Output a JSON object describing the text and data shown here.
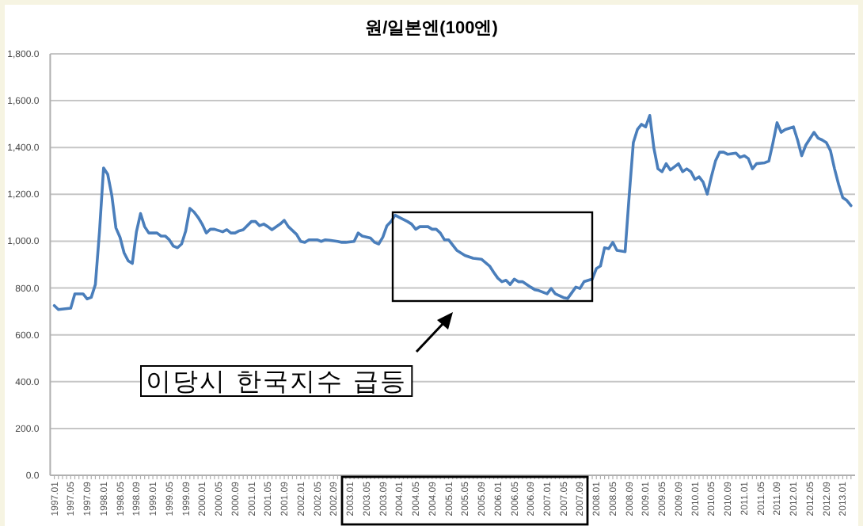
{
  "chart_data": {
    "type": "line",
    "title": "원/일본엔(100엔)",
    "annotations": [
      "이당시 한국지수 급등"
    ],
    "x": [
      "1997-01",
      "1997-02",
      "1997-05",
      "1997-06",
      "1997-08",
      "1997-09",
      "1997-10",
      "1997-11",
      "1997-12",
      "1998-01",
      "1998-02",
      "1998-03",
      "1998-04",
      "1998-05",
      "1998-06",
      "1998-07",
      "1998-08",
      "1998-09",
      "1998-10",
      "1998-11",
      "1998-12",
      "1999-02",
      "1999-03",
      "1999-04",
      "1999-05",
      "1999-06",
      "1999-07",
      "1999-08",
      "1999-09",
      "1999-10",
      "1999-11",
      "1999-12",
      "2000-01",
      "2000-02",
      "2000-03",
      "2000-04",
      "2000-06",
      "2000-07",
      "2000-08",
      "2000-09",
      "2000-10",
      "2000-11",
      "2001-01",
      "2001-02",
      "2001-03",
      "2001-04",
      "2001-05",
      "2001-06",
      "2001-08",
      "2001-09",
      "2001-10",
      "2001-12",
      "2002-01",
      "2002-02",
      "2002-03",
      "2002-05",
      "2002-06",
      "2002-07",
      "2002-08",
      "2002-10",
      "2002-11",
      "2002-12",
      "2003-02",
      "2003-03",
      "2003-04",
      "2003-06",
      "2003-07",
      "2003-08",
      "2003-09",
      "2003-10",
      "2003-11",
      "2003-12",
      "2004-01",
      "2004-03",
      "2004-04",
      "2004-05",
      "2004-06",
      "2004-08",
      "2004-09",
      "2004-10",
      "2004-11",
      "2004-12",
      "2005-01",
      "2005-03",
      "2005-05",
      "2005-07",
      "2005-09",
      "2005-11",
      "2005-12",
      "2006-01",
      "2006-02",
      "2006-03",
      "2006-04",
      "2006-05",
      "2006-06",
      "2006-07",
      "2006-09",
      "2006-10",
      "2006-11",
      "2007-01",
      "2007-02",
      "2007-03",
      "2007-05",
      "2007-06",
      "2007-08",
      "2007-09",
      "2007-10",
      "2007-12",
      "2008-01",
      "2008-02",
      "2008-03",
      "2008-04",
      "2008-05",
      "2008-06",
      "2008-08",
      "2008-09",
      "2008-10",
      "2008-11",
      "2008-12",
      "2009-01",
      "2009-02",
      "2009-03",
      "2009-04",
      "2009-05",
      "2009-06",
      "2009-07",
      "2009-09",
      "2009-10",
      "2009-11",
      "2009-12",
      "2010-01",
      "2010-02",
      "2010-03",
      "2010-04",
      "2010-05",
      "2010-06",
      "2010-07",
      "2010-08",
      "2010-09",
      "2010-11",
      "2010-12",
      "2011-01",
      "2011-02",
      "2011-03",
      "2011-04",
      "2011-06",
      "2011-07",
      "2011-08",
      "2011-09",
      "2011-10",
      "2011-11",
      "2012-01",
      "2012-02",
      "2012-03",
      "2012-04",
      "2012-06",
      "2012-07",
      "2012-08",
      "2012-09",
      "2012-10",
      "2012-11",
      "2012-12",
      "2013-01",
      "2013-02",
      "2013-03"
    ],
    "series": [
      {
        "color": "#4a7ebb",
        "values": [
          725,
          708,
          714,
          775,
          775,
          753,
          760,
          815,
          1040,
          1313,
          1286,
          1196,
          1057,
          1017,
          950,
          916,
          905,
          1040,
          1118,
          1062,
          1035,
          1035,
          1022,
          1022,
          1006,
          979,
          972,
          988,
          1044,
          1140,
          1125,
          1102,
          1073,
          1035,
          1051,
          1051,
          1040,
          1049,
          1035,
          1035,
          1044,
          1049,
          1084,
          1084,
          1066,
          1073,
          1062,
          1049,
          1073,
          1089,
          1062,
          1029,
          999,
          995,
          1006,
          1006,
          999,
          1006,
          1004,
          999,
          995,
          995,
          999,
          1035,
          1022,
          1013,
          995,
          988,
          1017,
          1066,
          1084,
          1111,
          1102,
          1084,
          1073,
          1051,
          1062,
          1062,
          1051,
          1051,
          1035,
          1006,
          1006,
          961,
          939,
          927,
          923,
          894,
          867,
          842,
          827,
          833,
          815,
          838,
          827,
          827,
          804,
          793,
          789,
          775,
          798,
          775,
          759,
          755,
          804,
          798,
          827,
          838,
          883,
          894,
          972,
          968,
          995,
          961,
          955,
          1196,
          1421,
          1477,
          1499,
          1488,
          1537,
          1398,
          1309,
          1297,
          1331,
          1304,
          1331,
          1297,
          1309,
          1297,
          1264,
          1275,
          1252,
          1201,
          1275,
          1342,
          1380,
          1380,
          1371,
          1376,
          1358,
          1365,
          1353,
          1309,
          1331,
          1335,
          1342,
          1420,
          1506,
          1465,
          1477,
          1488,
          1432,
          1365,
          1410,
          1465,
          1440,
          1432,
          1421,
          1387,
          1309,
          1242,
          1186,
          1174,
          1152
        ]
      }
    ],
    "xlim": [
      "1996-12",
      "2013-04"
    ],
    "xticks": [
      {
        "value": "1997-01",
        "label": "1997.01"
      },
      {
        "value": "1997-05",
        "label": "1997.05"
      },
      {
        "value": "1997-09",
        "label": "1997.09"
      },
      {
        "value": "1998-01",
        "label": "1998.01"
      },
      {
        "value": "1998-05",
        "label": "1998.05"
      },
      {
        "value": "1998-09",
        "label": "1998.09"
      },
      {
        "value": "1999-01",
        "label": "1999.01"
      },
      {
        "value": "1999-05",
        "label": "1999.05"
      },
      {
        "value": "1999-09",
        "label": "1999.09"
      },
      {
        "value": "2000-01",
        "label": "2000.01"
      },
      {
        "value": "2000-05",
        "label": "2000.05"
      },
      {
        "value": "2000-09",
        "label": "2000.09"
      },
      {
        "value": "2001-01",
        "label": "2001.01"
      },
      {
        "value": "2001-05",
        "label": "2001.05"
      },
      {
        "value": "2001-09",
        "label": "2001.09"
      },
      {
        "value": "2002-01",
        "label": "2002.01"
      },
      {
        "value": "2002-05",
        "label": "2002.05"
      },
      {
        "value": "2002-09",
        "label": "2002.09"
      },
      {
        "value": "2003-01",
        "label": "2003.01"
      },
      {
        "value": "2003-05",
        "label": "2003.05"
      },
      {
        "value": "2003-09",
        "label": "2003.09"
      },
      {
        "value": "2004-01",
        "label": "2004.01"
      },
      {
        "value": "2004-05",
        "label": "2004.05"
      },
      {
        "value": "2004-09",
        "label": "2004.09"
      },
      {
        "value": "2005-01",
        "label": "2005.01"
      },
      {
        "value": "2005-05",
        "label": "2005.05"
      },
      {
        "value": "2005-09",
        "label": "2005.09"
      },
      {
        "value": "2006-01",
        "label": "2006.01"
      },
      {
        "value": "2006-05",
        "label": "2006.05"
      },
      {
        "value": "2006-09",
        "label": "2006.09"
      },
      {
        "value": "2007-01",
        "label": "2007.01"
      },
      {
        "value": "2007-05",
        "label": "2007.05"
      },
      {
        "value": "2007-09",
        "label": "2007.09"
      },
      {
        "value": "2008-01",
        "label": "2008.01"
      },
      {
        "value": "2008-05",
        "label": "2008.05"
      },
      {
        "value": "2008-09",
        "label": "2008.09"
      },
      {
        "value": "2009-01",
        "label": "2009.01"
      },
      {
        "value": "2009-05",
        "label": "2009.05"
      },
      {
        "value": "2009-09",
        "label": "2009.09"
      },
      {
        "value": "2010-01",
        "label": "2010.01"
      },
      {
        "value": "2010-05",
        "label": "2010.05"
      },
      {
        "value": "2010-09",
        "label": "2010.09"
      },
      {
        "value": "2011-01",
        "label": "2011.01"
      },
      {
        "value": "2011-05",
        "label": "2011.05"
      },
      {
        "value": "2011-09",
        "label": "2011.09"
      },
      {
        "value": "2012-01",
        "label": "2012.01"
      },
      {
        "value": "2012-05",
        "label": "2012.05"
      },
      {
        "value": "2012-09",
        "label": "2012.09"
      },
      {
        "value": "2013-01",
        "label": "2013.01"
      }
    ],
    "ylim": [
      0,
      1800
    ],
    "yticks": [
      {
        "value": 0,
        "label": "0.0"
      },
      {
        "value": 200,
        "label": "200.0"
      },
      {
        "value": 400,
        "label": "400.0"
      },
      {
        "value": 600,
        "label": "600.0"
      },
      {
        "value": 800,
        "label": "800.0"
      },
      {
        "value": 1000,
        "label": "1,000.0"
      },
      {
        "value": 1200,
        "label": "1,200.0"
      },
      {
        "value": 1400,
        "label": "1,400.0"
      },
      {
        "value": 1600,
        "label": "1,600.0"
      },
      {
        "value": 1800,
        "label": "1,800.0"
      }
    ],
    "grid": "y",
    "marker": "none",
    "line_style": "solid"
  }
}
